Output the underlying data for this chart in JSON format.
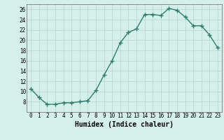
{
  "x": [
    0,
    1,
    2,
    3,
    4,
    5,
    6,
    7,
    8,
    9,
    10,
    11,
    12,
    13,
    14,
    15,
    16,
    17,
    18,
    19,
    20,
    21,
    22,
    23
  ],
  "y": [
    10.5,
    8.8,
    7.5,
    7.5,
    7.8,
    7.8,
    8.0,
    8.2,
    10.2,
    13.2,
    16.0,
    19.5,
    21.5,
    22.2,
    25.0,
    25.0,
    24.8,
    26.2,
    25.8,
    24.5,
    22.8,
    22.8,
    21.0,
    18.5
  ],
  "line_color": "#2e7d6e",
  "marker": "+",
  "marker_size": 4,
  "marker_linewidth": 1.0,
  "bg_color": "#d5f0eb",
  "grid_color": "#b8dad4",
  "xlabel": "Humidex (Indice chaleur)",
  "ylim": [
    6,
    27
  ],
  "xlim": [
    -0.5,
    23.5
  ],
  "yticks": [
    8,
    10,
    12,
    14,
    16,
    18,
    20,
    22,
    24,
    26
  ],
  "xticks": [
    0,
    1,
    2,
    3,
    4,
    5,
    6,
    7,
    8,
    9,
    10,
    11,
    12,
    13,
    14,
    15,
    16,
    17,
    18,
    19,
    20,
    21,
    22,
    23
  ],
  "xtick_labels": [
    "0",
    "1",
    "2",
    "3",
    "4",
    "5",
    "6",
    "7",
    "8",
    "9",
    "10",
    "11",
    "12",
    "13",
    "14",
    "15",
    "16",
    "17",
    "18",
    "19",
    "20",
    "21",
    "22",
    "23"
  ],
  "linewidth": 1.0,
  "tick_fontsize": 5.5,
  "xlabel_fontsize": 7
}
